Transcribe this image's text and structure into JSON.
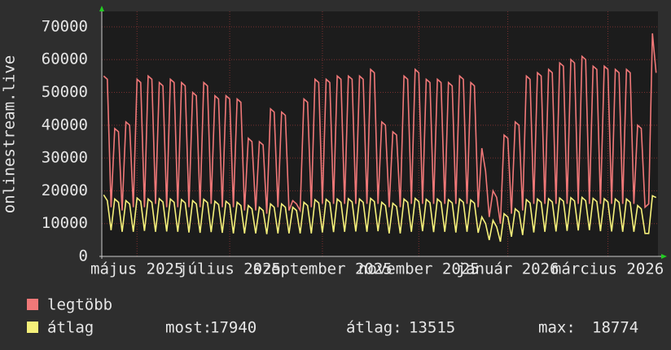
{
  "chart_data": {
    "type": "line",
    "y_label": "onlinestream.live",
    "ylim": [
      0,
      74700
    ],
    "yticks": [
      0,
      10000,
      20000,
      30000,
      40000,
      50000,
      60000,
      70000
    ],
    "grid": true,
    "categories": [
      null,
      null,
      null,
      null,
      null,
      null,
      null,
      null,
      null,
      "május 2025",
      null,
      null,
      null,
      null,
      null,
      null,
      null,
      null,
      null,
      null,
      null,
      null,
      null,
      null,
      null,
      null,
      null,
      null,
      null,
      null,
      null,
      null,
      null,
      null,
      "július 2025",
      null,
      null,
      null,
      null,
      null,
      null,
      null,
      null,
      null,
      null,
      null,
      null,
      null,
      null,
      null,
      null,
      null,
      null,
      null,
      null,
      null,
      null,
      null,
      null,
      "szeptember 2025",
      null,
      null,
      null,
      null,
      null,
      null,
      null,
      null,
      null,
      null,
      null,
      null,
      null,
      null,
      null,
      null,
      null,
      null,
      null,
      null,
      null,
      null,
      null,
      null,
      null,
      "november 2025",
      null,
      null,
      null,
      null,
      null,
      null,
      null,
      null,
      null,
      null,
      null,
      null,
      null,
      null,
      null,
      null,
      null,
      null,
      null,
      null,
      null,
      null,
      null,
      "január 2026",
      null,
      null,
      null,
      null,
      null,
      null,
      null,
      null,
      null,
      null,
      null,
      null,
      null,
      null,
      null,
      null,
      null,
      null,
      null,
      null,
      null,
      null,
      null,
      null,
      null,
      null,
      "március 2026",
      null,
      null,
      null,
      null,
      null,
      null,
      null,
      null,
      null,
      null,
      null,
      null,
      null
    ],
    "series": [
      {
        "name": "legtöbb",
        "color": "#f07878",
        "values": [
          55000,
          54000,
          15000,
          39000,
          38000,
          14000,
          41000,
          40000,
          15000,
          54000,
          53000,
          15000,
          55000,
          54000,
          16000,
          53000,
          52000,
          15000,
          54000,
          53000,
          15000,
          53000,
          52000,
          15000,
          50000,
          49000,
          15000,
          53000,
          52000,
          16000,
          49000,
          48000,
          15000,
          49000,
          48000,
          15000,
          48000,
          47000,
          14000,
          36000,
          35000,
          14000,
          35000,
          34000,
          13000,
          45000,
          44000,
          15000,
          44000,
          43000,
          14000,
          17000,
          16000,
          14000,
          48000,
          47000,
          15000,
          54000,
          53000,
          16000,
          54000,
          53000,
          16000,
          55000,
          54000,
          16000,
          55000,
          54000,
          16000,
          55000,
          54000,
          16000,
          57000,
          56000,
          16000,
          41000,
          40000,
          15000,
          38000,
          37000,
          15000,
          55000,
          54000,
          16000,
          57000,
          56000,
          16000,
          54000,
          53000,
          16000,
          54000,
          53000,
          16000,
          53000,
          52000,
          16000,
          55000,
          54000,
          16000,
          53000,
          52000,
          15000,
          33000,
          26000,
          12000,
          20000,
          18000,
          10000,
          37000,
          36000,
          13000,
          41000,
          40000,
          14000,
          55000,
          54000,
          16000,
          56000,
          55000,
          16000,
          57000,
          56000,
          16000,
          59000,
          58000,
          16000,
          60000,
          59000,
          16000,
          61000,
          60000,
          16000,
          58000,
          57000,
          16000,
          58000,
          57000,
          16000,
          57000,
          56000,
          16000,
          57000,
          56000,
          16000,
          40000,
          39000,
          15000,
          16000,
          68000,
          56000
        ]
      },
      {
        "name": "átlag",
        "color": "#f5f07a",
        "values": [
          18774,
          17000,
          8000,
          17500,
          16500,
          7500,
          17000,
          16000,
          7500,
          17800,
          16800,
          7800,
          17500,
          16500,
          7500,
          17600,
          16600,
          7600,
          17500,
          16500,
          7500,
          17300,
          16300,
          7300,
          17000,
          16000,
          7200,
          17400,
          16400,
          7400,
          16800,
          15800,
          7200,
          16800,
          15800,
          7000,
          16500,
          15500,
          7000,
          15500,
          14500,
          7000,
          15000,
          14000,
          6800,
          16000,
          15000,
          7000,
          16000,
          15000,
          7000,
          15000,
          14000,
          7000,
          16500,
          15500,
          7000,
          17300,
          16300,
          7300,
          17400,
          16400,
          7400,
          17500,
          16500,
          7500,
          17600,
          16600,
          7600,
          17500,
          16500,
          7500,
          17700,
          16700,
          7700,
          16500,
          15500,
          7000,
          16200,
          15200,
          7000,
          17500,
          16500,
          7500,
          17700,
          16700,
          7700,
          17400,
          16400,
          7400,
          17500,
          16500,
          7500,
          17300,
          16300,
          7300,
          17500,
          16500,
          7500,
          17200,
          16200,
          7200,
          12000,
          10000,
          5000,
          11000,
          9000,
          4500,
          13000,
          12000,
          6000,
          14500,
          13500,
          6500,
          17300,
          16300,
          7300,
          17500,
          16500,
          7500,
          17600,
          16600,
          7600,
          17800,
          16800,
          7800,
          17900,
          16900,
          7900,
          18000,
          17000,
          8000,
          17700,
          16700,
          7700,
          17600,
          16600,
          7600,
          17500,
          16500,
          7500,
          17500,
          16500,
          7500,
          15500,
          14500,
          7000,
          7000,
          18500,
          17940
        ]
      }
    ],
    "stats": [
      {
        "label": "most:",
        "value": 17940
      },
      {
        "label": "átlag:",
        "value": 13515
      },
      {
        "label": "max:",
        "value": 18774
      }
    ]
  }
}
